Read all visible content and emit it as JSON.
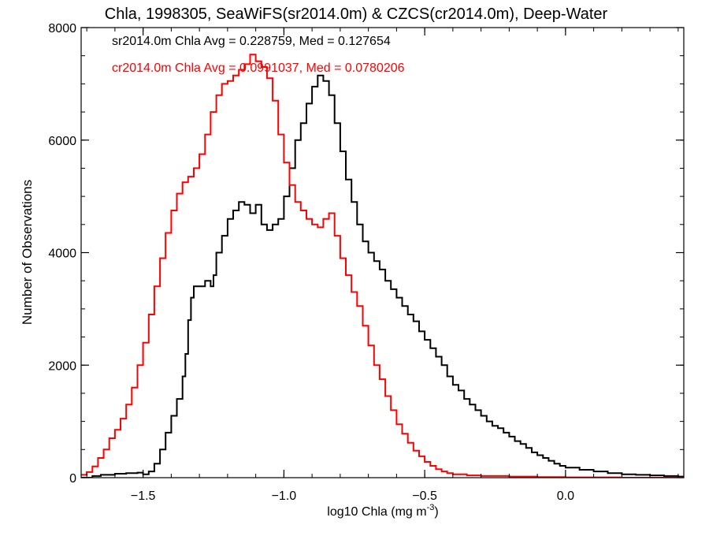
{
  "chart_data": {
    "type": "line",
    "title": "Chla, 1998305, SeaWiFS(sr2014.0m) & CZCS(cr2014.0m), Deep-Water",
    "xlabel": "log10 Chla (mg m",
    "xlabel_sup": "-3",
    "xlabel_close": ")",
    "ylabel": "Number of Observations",
    "xlim": [
      -1.72,
      0.42
    ],
    "ylim": [
      0,
      8000
    ],
    "x_ticks": [
      -1.5,
      -1.0,
      -0.5,
      0.0
    ],
    "x_tick_labels": [
      "−1.5",
      "−1.0",
      "−0.5",
      "0.0"
    ],
    "y_ticks": [
      0,
      2000,
      4000,
      6000,
      8000
    ],
    "y_tick_labels": [
      "0",
      "2000",
      "4000",
      "6000",
      "8000"
    ],
    "step": true,
    "grid": false,
    "annotations": [
      {
        "text": "sr2014.0m Chla Avg = 0.228759, Med = 0.127654",
        "color": "#000000"
      },
      {
        "text": "cr2014.0m Chla Avg = 0.0991037, Med = 0.0780206",
        "color": "#ff0000"
      }
    ],
    "series": [
      {
        "color": "#000000",
        "points": [
          [
            -1.72,
            0
          ],
          [
            -1.7,
            0
          ],
          [
            -1.68,
            30
          ],
          [
            -1.65,
            50
          ],
          [
            -1.6,
            70
          ],
          [
            -1.56,
            80
          ],
          [
            -1.52,
            90
          ],
          [
            -1.5,
            60
          ],
          [
            -1.48,
            110
          ],
          [
            -1.46,
            250
          ],
          [
            -1.44,
            500
          ],
          [
            -1.42,
            800
          ],
          [
            -1.4,
            1100
          ],
          [
            -1.38,
            1400
          ],
          [
            -1.36,
            1800
          ],
          [
            -1.35,
            2200
          ],
          [
            -1.34,
            2800
          ],
          [
            -1.33,
            3200
          ],
          [
            -1.32,
            3400
          ],
          [
            -1.3,
            3400
          ],
          [
            -1.28,
            3500
          ],
          [
            -1.26,
            3400
          ],
          [
            -1.25,
            3600
          ],
          [
            -1.24,
            4000
          ],
          [
            -1.22,
            4300
          ],
          [
            -1.2,
            4600
          ],
          [
            -1.18,
            4750
          ],
          [
            -1.16,
            4900
          ],
          [
            -1.14,
            4850
          ],
          [
            -1.12,
            4700
          ],
          [
            -1.1,
            4850
          ],
          [
            -1.08,
            4500
          ],
          [
            -1.06,
            4400
          ],
          [
            -1.04,
            4500
          ],
          [
            -1.02,
            4600
          ],
          [
            -1.0,
            5000
          ],
          [
            -0.98,
            5500
          ],
          [
            -0.96,
            6000
          ],
          [
            -0.94,
            6300
          ],
          [
            -0.92,
            6650
          ],
          [
            -0.9,
            6950
          ],
          [
            -0.88,
            7150
          ],
          [
            -0.86,
            7050
          ],
          [
            -0.84,
            6800
          ],
          [
            -0.82,
            6300
          ],
          [
            -0.8,
            5800
          ],
          [
            -0.78,
            5300
          ],
          [
            -0.76,
            4900
          ],
          [
            -0.74,
            4500
          ],
          [
            -0.72,
            4200
          ],
          [
            -0.7,
            4000
          ],
          [
            -0.68,
            3850
          ],
          [
            -0.66,
            3700
          ],
          [
            -0.64,
            3500
          ],
          [
            -0.62,
            3350
          ],
          [
            -0.6,
            3200
          ],
          [
            -0.58,
            3050
          ],
          [
            -0.56,
            2900
          ],
          [
            -0.54,
            2780
          ],
          [
            -0.52,
            2600
          ],
          [
            -0.5,
            2450
          ],
          [
            -0.48,
            2300
          ],
          [
            -0.46,
            2150
          ],
          [
            -0.44,
            2000
          ],
          [
            -0.42,
            1800
          ],
          [
            -0.4,
            1650
          ],
          [
            -0.38,
            1550
          ],
          [
            -0.36,
            1400
          ],
          [
            -0.34,
            1300
          ],
          [
            -0.32,
            1200
          ],
          [
            -0.3,
            1100
          ],
          [
            -0.28,
            1000
          ],
          [
            -0.26,
            920
          ],
          [
            -0.24,
            880
          ],
          [
            -0.22,
            800
          ],
          [
            -0.2,
            730
          ],
          [
            -0.18,
            650
          ],
          [
            -0.16,
            600
          ],
          [
            -0.14,
            530
          ],
          [
            -0.12,
            450
          ],
          [
            -0.1,
            400
          ],
          [
            -0.08,
            350
          ],
          [
            -0.06,
            300
          ],
          [
            -0.04,
            250
          ],
          [
            -0.02,
            210
          ],
          [
            0.0,
            180
          ],
          [
            0.05,
            140
          ],
          [
            0.1,
            110
          ],
          [
            0.15,
            80
          ],
          [
            0.2,
            60
          ],
          [
            0.25,
            50
          ],
          [
            0.3,
            40
          ],
          [
            0.35,
            30
          ],
          [
            0.4,
            20
          ],
          [
            0.42,
            10
          ]
        ]
      },
      {
        "color": "#ff0000",
        "points": [
          [
            -1.72,
            50
          ],
          [
            -1.7,
            100
          ],
          [
            -1.68,
            200
          ],
          [
            -1.66,
            350
          ],
          [
            -1.64,
            500
          ],
          [
            -1.62,
            700
          ],
          [
            -1.6,
            850
          ],
          [
            -1.58,
            1050
          ],
          [
            -1.56,
            1300
          ],
          [
            -1.54,
            1600
          ],
          [
            -1.52,
            2000
          ],
          [
            -1.5,
            2400
          ],
          [
            -1.48,
            2900
          ],
          [
            -1.46,
            3400
          ],
          [
            -1.44,
            3900
          ],
          [
            -1.42,
            4350
          ],
          [
            -1.4,
            4750
          ],
          [
            -1.38,
            5050
          ],
          [
            -1.36,
            5250
          ],
          [
            -1.34,
            5350
          ],
          [
            -1.32,
            5500
          ],
          [
            -1.3,
            5750
          ],
          [
            -1.28,
            6100
          ],
          [
            -1.26,
            6500
          ],
          [
            -1.24,
            6800
          ],
          [
            -1.22,
            7000
          ],
          [
            -1.2,
            7050
          ],
          [
            -1.18,
            7150
          ],
          [
            -1.16,
            7250
          ],
          [
            -1.14,
            7350
          ],
          [
            -1.12,
            7520
          ],
          [
            -1.1,
            7400
          ],
          [
            -1.08,
            7300
          ],
          [
            -1.06,
            7100
          ],
          [
            -1.04,
            6700
          ],
          [
            -1.02,
            6100
          ],
          [
            -1.0,
            5600
          ],
          [
            -0.98,
            5200
          ],
          [
            -0.96,
            4900
          ],
          [
            -0.94,
            4750
          ],
          [
            -0.92,
            4600
          ],
          [
            -0.9,
            4500
          ],
          [
            -0.88,
            4450
          ],
          [
            -0.86,
            4600
          ],
          [
            -0.84,
            4700
          ],
          [
            -0.82,
            4300
          ],
          [
            -0.8,
            3900
          ],
          [
            -0.78,
            3600
          ],
          [
            -0.76,
            3300
          ],
          [
            -0.74,
            3050
          ],
          [
            -0.72,
            2700
          ],
          [
            -0.7,
            2350
          ],
          [
            -0.68,
            2000
          ],
          [
            -0.66,
            1750
          ],
          [
            -0.64,
            1450
          ],
          [
            -0.62,
            1200
          ],
          [
            -0.6,
            950
          ],
          [
            -0.58,
            780
          ],
          [
            -0.56,
            620
          ],
          [
            -0.54,
            480
          ],
          [
            -0.52,
            380
          ],
          [
            -0.5,
            280
          ],
          [
            -0.48,
            210
          ],
          [
            -0.46,
            150
          ],
          [
            -0.44,
            110
          ],
          [
            -0.42,
            80
          ],
          [
            -0.4,
            60
          ],
          [
            -0.35,
            40
          ],
          [
            -0.3,
            30
          ],
          [
            -0.2,
            20
          ],
          [
            -0.1,
            10
          ],
          [
            0.0,
            5
          ],
          [
            0.2,
            0
          ],
          [
            0.42,
            0
          ]
        ]
      }
    ]
  }
}
